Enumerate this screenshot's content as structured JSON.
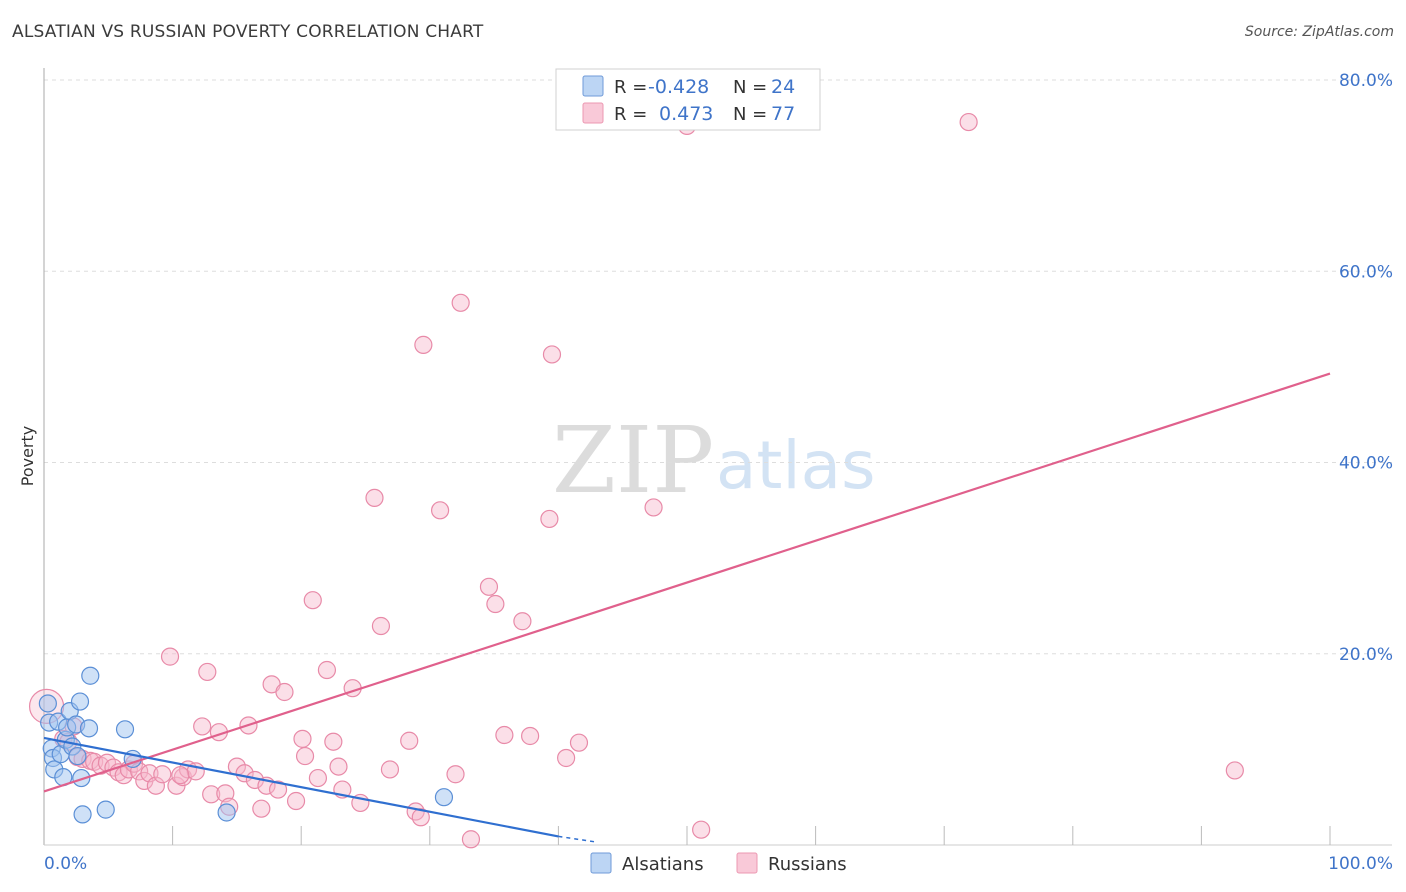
{
  "title": "ALSATIAN VS RUSSIAN POVERTY CORRELATION CHART",
  "source": "Source: ZipAtlas.com",
  "watermark": {
    "zip": "ZIP",
    "atlas": "atlas"
  },
  "colors": {
    "alsatian_fill": "#9fc3ef",
    "alsatian_stroke": "#5b8fd6",
    "alsatian_line": "#2f6fd0",
    "russian_fill": "#f6b9cc",
    "russian_stroke": "#e88aa8",
    "russian_line": "#e0608c",
    "tick_color": "#3f74c9",
    "grid": "#dddddd"
  },
  "legend": {
    "rows": [
      {
        "r_label": "R =",
        "r_value": "-0.428",
        "n_label": "N =",
        "n_value": "24",
        "series": "alsatian"
      },
      {
        "r_label": "R =",
        "r_value": "0.473",
        "n_label": "N =",
        "n_value": "77",
        "series": "russian"
      }
    ]
  },
  "bottom_legend": [
    "Alsatians",
    "Russians"
  ],
  "chart_data": {
    "type": "scatter",
    "title": "ALSATIAN VS RUSSIAN POVERTY CORRELATION CHART",
    "xlabel": "",
    "ylabel": "Poverty",
    "xlim": [
      0,
      100
    ],
    "ylim": [
      0,
      80
    ],
    "x_tick_labels": [
      "0.0%",
      "100.0%"
    ],
    "y_ticks": [
      20,
      40,
      60,
      80
    ],
    "y_tick_labels": [
      "20.0%",
      "40.0%",
      "60.0%",
      "80.0%"
    ],
    "grid": true,
    "series": [
      {
        "name": "Alsatians",
        "r": -0.428,
        "n": 24,
        "trend": {
          "x": [
            0,
            40
          ],
          "y": [
            11.2,
            0.9
          ],
          "dash_to": [
            43,
            0.3
          ]
        },
        "points": [
          {
            "x": 0.3,
            "y": 14.8
          },
          {
            "x": 0.4,
            "y": 12.8
          },
          {
            "x": 0.6,
            "y": 10.1
          },
          {
            "x": 0.7,
            "y": 9.1
          },
          {
            "x": 0.8,
            "y": 7.9
          },
          {
            "x": 1.1,
            "y": 12.9
          },
          {
            "x": 1.3,
            "y": 9.5
          },
          {
            "x": 1.5,
            "y": 7.1
          },
          {
            "x": 1.7,
            "y": 11.0
          },
          {
            "x": 1.8,
            "y": 12.3
          },
          {
            "x": 2.0,
            "y": 14.0
          },
          {
            "x": 2.2,
            "y": 10.3
          },
          {
            "x": 2.5,
            "y": 12.6
          },
          {
            "x": 2.6,
            "y": 9.3
          },
          {
            "x": 2.8,
            "y": 15.0
          },
          {
            "x": 2.9,
            "y": 7.0
          },
          {
            "x": 3.0,
            "y": 3.2
          },
          {
            "x": 3.5,
            "y": 12.2
          },
          {
            "x": 3.6,
            "y": 17.7
          },
          {
            "x": 4.8,
            "y": 3.7
          },
          {
            "x": 6.3,
            "y": 12.1
          },
          {
            "x": 6.9,
            "y": 9.0
          },
          {
            "x": 14.2,
            "y": 3.4
          },
          {
            "x": 31.1,
            "y": 5.0
          }
        ]
      },
      {
        "name": "Russians",
        "r": 0.473,
        "n": 77,
        "trend": {
          "x": [
            0,
            100
          ],
          "y": [
            5.6,
            49.3
          ]
        },
        "points": [
          {
            "x": 0.2,
            "y": 14.5,
            "big": true
          },
          {
            "x": 1.5,
            "y": 11.1
          },
          {
            "x": 1.9,
            "y": 10.8
          },
          {
            "x": 2.3,
            "y": 12.4
          },
          {
            "x": 2.6,
            "y": 9.2
          },
          {
            "x": 3.0,
            "y": 9.0
          },
          {
            "x": 3.6,
            "y": 8.8
          },
          {
            "x": 3.9,
            "y": 8.7
          },
          {
            "x": 4.4,
            "y": 8.3
          },
          {
            "x": 4.9,
            "y": 8.6
          },
          {
            "x": 5.4,
            "y": 8.1
          },
          {
            "x": 5.8,
            "y": 7.6
          },
          {
            "x": 6.2,
            "y": 7.3
          },
          {
            "x": 6.6,
            "y": 7.9
          },
          {
            "x": 7.0,
            "y": 8.5
          },
          {
            "x": 7.4,
            "y": 7.7
          },
          {
            "x": 7.8,
            "y": 6.7
          },
          {
            "x": 8.2,
            "y": 7.5
          },
          {
            "x": 8.7,
            "y": 6.2
          },
          {
            "x": 9.2,
            "y": 7.4
          },
          {
            "x": 9.8,
            "y": 19.7
          },
          {
            "x": 10.3,
            "y": 6.2
          },
          {
            "x": 10.8,
            "y": 7.1
          },
          {
            "x": 11.2,
            "y": 7.9
          },
          {
            "x": 11.8,
            "y": 7.7
          },
          {
            "x": 12.3,
            "y": 12.4
          },
          {
            "x": 12.7,
            "y": 18.1
          },
          {
            "x": 13.0,
            "y": 5.3
          },
          {
            "x": 13.6,
            "y": 11.8
          },
          {
            "x": 14.1,
            "y": 5.4
          },
          {
            "x": 14.4,
            "y": 4.0
          },
          {
            "x": 15.0,
            "y": 8.2
          },
          {
            "x": 15.6,
            "y": 7.5
          },
          {
            "x": 15.9,
            "y": 12.5
          },
          {
            "x": 16.4,
            "y": 6.8
          },
          {
            "x": 16.9,
            "y": 3.8
          },
          {
            "x": 17.3,
            "y": 6.2
          },
          {
            "x": 17.7,
            "y": 16.8
          },
          {
            "x": 18.2,
            "y": 5.8
          },
          {
            "x": 18.7,
            "y": 16.0
          },
          {
            "x": 19.6,
            "y": 4.6
          },
          {
            "x": 20.1,
            "y": 11.1
          },
          {
            "x": 20.3,
            "y": 9.3
          },
          {
            "x": 20.9,
            "y": 25.6
          },
          {
            "x": 21.3,
            "y": 7.0
          },
          {
            "x": 22.0,
            "y": 18.3
          },
          {
            "x": 22.5,
            "y": 10.8
          },
          {
            "x": 22.9,
            "y": 8.2
          },
          {
            "x": 23.2,
            "y": 5.8
          },
          {
            "x": 24.0,
            "y": 16.4
          },
          {
            "x": 24.6,
            "y": 4.4
          },
          {
            "x": 25.7,
            "y": 36.3
          },
          {
            "x": 26.2,
            "y": 22.9
          },
          {
            "x": 26.9,
            "y": 7.9
          },
          {
            "x": 28.4,
            "y": 10.9
          },
          {
            "x": 28.9,
            "y": 3.5
          },
          {
            "x": 29.3,
            "y": 2.9
          },
          {
            "x": 29.5,
            "y": 52.3
          },
          {
            "x": 30.8,
            "y": 35.0
          },
          {
            "x": 32.0,
            "y": 7.4
          },
          {
            "x": 32.4,
            "y": 56.7
          },
          {
            "x": 33.2,
            "y": 0.6
          },
          {
            "x": 34.6,
            "y": 27.0
          },
          {
            "x": 35.1,
            "y": 25.2
          },
          {
            "x": 35.8,
            "y": 11.5
          },
          {
            "x": 37.2,
            "y": 23.4
          },
          {
            "x": 37.8,
            "y": 11.4
          },
          {
            "x": 39.3,
            "y": 34.1
          },
          {
            "x": 39.5,
            "y": 51.3
          },
          {
            "x": 40.6,
            "y": 9.1
          },
          {
            "x": 41.6,
            "y": 10.7
          },
          {
            "x": 47.4,
            "y": 35.3
          },
          {
            "x": 50.0,
            "y": 75.2
          },
          {
            "x": 51.1,
            "y": 1.6
          },
          {
            "x": 71.9,
            "y": 75.6
          },
          {
            "x": 92.6,
            "y": 7.8
          },
          {
            "x": 10.6,
            "y": 7.3
          }
        ]
      }
    ]
  }
}
